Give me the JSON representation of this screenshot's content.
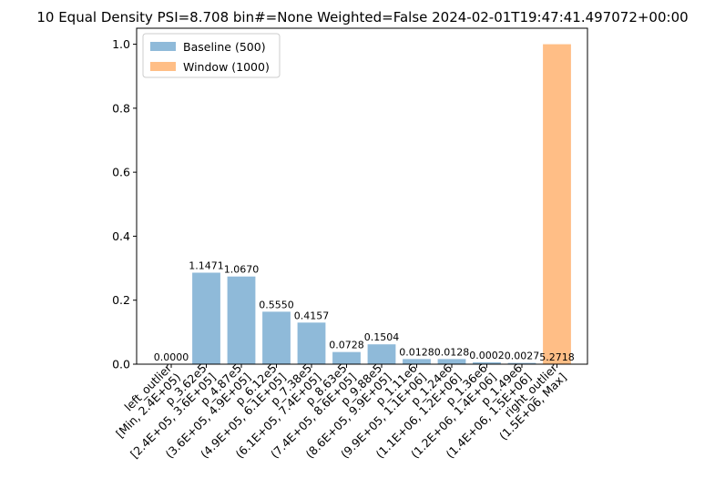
{
  "chart_data": {
    "type": "bar",
    "title": "10 Equal Density PSI=8.708 bin#=None Weighted=False 2024-02-01T19:47:41.497072+00:00",
    "xlabel": "",
    "ylabel": "",
    "ylim": [
      0,
      1.05
    ],
    "yticks": [
      "0.0",
      "0.2",
      "0.4",
      "0.6",
      "0.8",
      "1.0"
    ],
    "grid": false,
    "legend_position": "top-left",
    "categories": [
      "left_outlier\n[Min, 2.4E+05)",
      "p_3.62e5\n[2.4E+05, 3.6E+05]",
      "p_4.87e5\n(3.6E+05, 4.9E+05]",
      "p_6.12e5\n(4.9E+05, 6.1E+05]",
      "p_7.38e5\n(6.1E+05, 7.4E+05]",
      "p_8.63e5\n(7.4E+05, 8.6E+05]",
      "p_9.88e5\n(8.6E+05, 9.9E+05]",
      "p_1.11e6\n(9.9E+05, 1.1E+06]",
      "p_1.24e6\n(1.1E+06, 1.2E+06]",
      "p_1.36e6\n(1.2E+06, 1.4E+06]",
      "p_1.49e6\n(1.4E+06, 1.5E+06]",
      "right_outlier\n(1.5E+06, Max]"
    ],
    "series": [
      {
        "name": "Baseline (500)",
        "color": "#8fbad9",
        "values": [
          0.0,
          0.286,
          0.274,
          0.164,
          0.13,
          0.038,
          0.062,
          0.016,
          0.016,
          0.006,
          0.004,
          0.0
        ]
      },
      {
        "name": "Window (1000)",
        "color": "#ffbe86",
        "values": [
          0.0,
          0.0,
          0.0,
          0.0,
          0.0,
          0.0,
          0.0,
          0.0,
          0.0,
          0.0,
          0.0,
          1.0
        ]
      }
    ],
    "bar_labels": [
      "0.0000",
      "1.1471",
      "1.0670",
      "0.5550",
      "0.4157",
      "0.0728",
      "0.1504",
      "0.0128",
      "0.0128",
      "0.0002",
      "0.0027",
      "5.2718"
    ]
  }
}
